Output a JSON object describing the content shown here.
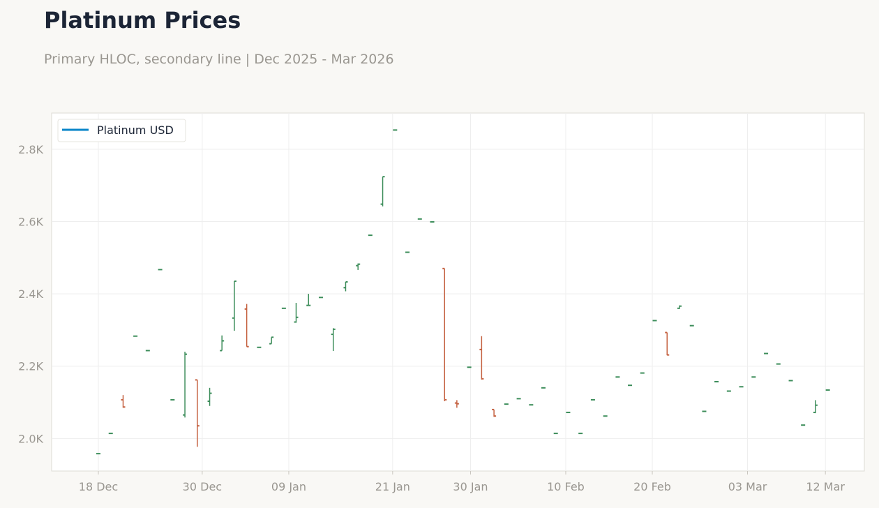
{
  "title": "Platinum Prices",
  "subtitle": "Primary HLOC, secondary line | Dec 2025 - Mar 2026",
  "colors": {
    "up": "#3c8d5a",
    "down": "#c4603f",
    "line": "#0a85c9",
    "grid": "#eeeeee",
    "frame": "#dddbd5"
  },
  "chart_data": {
    "type": "hloc",
    "title": "Platinum Prices",
    "legend": {
      "position": "top-left",
      "entries": [
        "Platinum USD"
      ]
    },
    "xlabel": "",
    "ylabel": "",
    "x_ticks": [
      {
        "day": 0,
        "label": "18 Dec"
      },
      {
        "day": 12,
        "label": "30 Dec"
      },
      {
        "day": 22,
        "label": "09 Jan"
      },
      {
        "day": 34,
        "label": "21 Jan"
      },
      {
        "day": 43,
        "label": "30 Jan"
      },
      {
        "day": 54,
        "label": "10 Feb"
      },
      {
        "day": 64,
        "label": "20 Feb"
      },
      {
        "day": 75,
        "label": "03 Mar"
      },
      {
        "day": 84,
        "label": "12 Mar"
      }
    ],
    "xlim": [
      -5.4,
      88.5
    ],
    "y_ticks": [
      2000,
      2200,
      2400,
      2600,
      2800
    ],
    "y_tick_labels": [
      "2.0K",
      "2.2K",
      "2.4K",
      "2.6K",
      "2.8K"
    ],
    "ylim": [
      1910,
      2900
    ],
    "grid": true,
    "series": [
      {
        "name": "Platinum USD",
        "points": [
          {
            "date": "18 Dec",
            "day": 0,
            "o": 1958,
            "h": 1958,
            "l": 1958,
            "c": 1958
          },
          {
            "date": "19 Dec",
            "day": 1.43,
            "o": 2014,
            "h": 2014,
            "l": 2014,
            "c": 2014
          },
          {
            "date": "21 Dec",
            "day": 2.86,
            "o": 2107,
            "h": 2120,
            "l": 2085,
            "c": 2087
          },
          {
            "date": "22 Dec",
            "day": 4.28,
            "o": 2283,
            "h": 2283,
            "l": 2283,
            "c": 2283
          },
          {
            "date": "23 Dec",
            "day": 5.71,
            "o": 2243,
            "h": 2243,
            "l": 2243,
            "c": 2243
          },
          {
            "date": "25 Dec",
            "day": 7.14,
            "o": 2467,
            "h": 2467,
            "l": 2467,
            "c": 2467
          },
          {
            "date": "26 Dec",
            "day": 8.57,
            "o": 2107,
            "h": 2107,
            "l": 2107,
            "c": 2107
          },
          {
            "date": "28 Dec",
            "day": 10,
            "o": 2065,
            "h": 2240,
            "l": 2058,
            "c": 2233
          },
          {
            "date": "29 Dec",
            "day": 11.43,
            "o": 2162,
            "h": 2162,
            "l": 1977,
            "c": 2035
          },
          {
            "date": "30 Dec",
            "day": 12.86,
            "o": 2103,
            "h": 2140,
            "l": 2090,
            "c": 2125
          },
          {
            "date": "01 Jan",
            "day": 14.28,
            "o": 2243,
            "h": 2285,
            "l": 2243,
            "c": 2270
          },
          {
            "date": "02 Jan",
            "day": 15.71,
            "o": 2333,
            "h": 2435,
            "l": 2298,
            "c": 2435
          },
          {
            "date": "03 Jan",
            "day": 17.14,
            "o": 2358,
            "h": 2372,
            "l": 2254,
            "c": 2254
          },
          {
            "date": "05 Jan",
            "day": 18.57,
            "o": 2252,
            "h": 2252,
            "l": 2252,
            "c": 2252
          },
          {
            "date": "06 Jan",
            "day": 20,
            "o": 2262,
            "h": 2280,
            "l": 2262,
            "c": 2280
          },
          {
            "date": "08 Jan",
            "day": 21.43,
            "o": 2360,
            "h": 2360,
            "l": 2360,
            "c": 2360
          },
          {
            "date": "09 Jan",
            "day": 22.85,
            "o": 2322,
            "h": 2375,
            "l": 2320,
            "c": 2335
          },
          {
            "date": "10 Jan",
            "day": 24.28,
            "o": 2368,
            "h": 2400,
            "l": 2368,
            "c": 2368
          },
          {
            "date": "12 Jan",
            "day": 25.71,
            "o": 2390,
            "h": 2390,
            "l": 2390,
            "c": 2390
          },
          {
            "date": "13 Jan",
            "day": 27.14,
            "o": 2288,
            "h": 2305,
            "l": 2242,
            "c": 2302
          },
          {
            "date": "14 Jan",
            "day": 28.57,
            "o": 2417,
            "h": 2433,
            "l": 2407,
            "c": 2433
          },
          {
            "date": "16 Jan",
            "day": 30,
            "o": 2478,
            "h": 2484,
            "l": 2466,
            "c": 2482
          },
          {
            "date": "17 Jan",
            "day": 31.42,
            "o": 2562,
            "h": 2562,
            "l": 2562,
            "c": 2562
          },
          {
            "date": "19 Jan",
            "day": 32.85,
            "o": 2648,
            "h": 2724,
            "l": 2642,
            "c": 2724
          },
          {
            "date": "20 Jan",
            "day": 34.28,
            "o": 2853,
            "h": 2853,
            "l": 2853,
            "c": 2853
          },
          {
            "date": "21 Jan",
            "day": 35.71,
            "o": 2515,
            "h": 2515,
            "l": 2515,
            "c": 2515
          },
          {
            "date": "23 Jan",
            "day": 37.14,
            "o": 2607,
            "h": 2607,
            "l": 2607,
            "c": 2607
          },
          {
            "date": "24 Jan",
            "day": 38.57,
            "o": 2599,
            "h": 2599,
            "l": 2599,
            "c": 2599
          },
          {
            "date": "25 Jan",
            "day": 40,
            "o": 2470,
            "h": 2470,
            "l": 2103,
            "c": 2107
          },
          {
            "date": "27 Jan",
            "day": 41.42,
            "o": 2098,
            "h": 2106,
            "l": 2085,
            "c": 2096
          },
          {
            "date": "28 Jan",
            "day": 42.85,
            "o": 2197,
            "h": 2197,
            "l": 2197,
            "c": 2197
          },
          {
            "date": "30 Jan",
            "day": 44.28,
            "o": 2246,
            "h": 2283,
            "l": 2163,
            "c": 2165
          },
          {
            "date": "31 Jan",
            "day": 45.71,
            "o": 2080,
            "h": 2080,
            "l": 2060,
            "c": 2062
          },
          {
            "date": "01 Feb",
            "day": 47.14,
            "o": 2095,
            "h": 2095,
            "l": 2095,
            "c": 2095
          },
          {
            "date": "03 Feb",
            "day": 48.57,
            "o": 2110,
            "h": 2110,
            "l": 2110,
            "c": 2110
          },
          {
            "date": "04 Feb",
            "day": 50,
            "o": 2093,
            "h": 2093,
            "l": 2093,
            "c": 2093
          },
          {
            "date": "06 Feb",
            "day": 51.42,
            "o": 2140,
            "h": 2140,
            "l": 2140,
            "c": 2140
          },
          {
            "date": "07 Feb",
            "day": 52.85,
            "o": 2014,
            "h": 2014,
            "l": 2014,
            "c": 2014
          },
          {
            "date": "08 Feb",
            "day": 54.28,
            "o": 2072,
            "h": 2072,
            "l": 2072,
            "c": 2072
          },
          {
            "date": "10 Feb",
            "day": 55.71,
            "o": 2014,
            "h": 2014,
            "l": 2014,
            "c": 2014
          },
          {
            "date": "11 Feb",
            "day": 57.14,
            "o": 2107,
            "h": 2107,
            "l": 2107,
            "c": 2107
          },
          {
            "date": "13 Feb",
            "day": 58.57,
            "o": 2062,
            "h": 2062,
            "l": 2062,
            "c": 2062
          },
          {
            "date": "14 Feb",
            "day": 60,
            "o": 2170,
            "h": 2170,
            "l": 2170,
            "c": 2170
          },
          {
            "date": "15 Feb",
            "day": 61.42,
            "o": 2147,
            "h": 2147,
            "l": 2147,
            "c": 2147
          },
          {
            "date": "17 Feb",
            "day": 62.85,
            "o": 2181,
            "h": 2181,
            "l": 2181,
            "c": 2181
          },
          {
            "date": "18 Feb",
            "day": 64.28,
            "o": 2326,
            "h": 2326,
            "l": 2326,
            "c": 2326
          },
          {
            "date": "20 Feb",
            "day": 65.71,
            "o": 2293,
            "h": 2293,
            "l": 2230,
            "c": 2231
          },
          {
            "date": "21 Feb",
            "day": 67.14,
            "o": 2360,
            "h": 2368,
            "l": 2358,
            "c": 2366
          },
          {
            "date": "22 Feb",
            "day": 68.57,
            "o": 2312,
            "h": 2312,
            "l": 2312,
            "c": 2312
          },
          {
            "date": "24 Feb",
            "day": 70,
            "o": 2075,
            "h": 2075,
            "l": 2075,
            "c": 2075
          },
          {
            "date": "25 Feb",
            "day": 71.42,
            "o": 2157,
            "h": 2157,
            "l": 2157,
            "c": 2157
          },
          {
            "date": "27 Feb",
            "day": 72.85,
            "o": 2131,
            "h": 2131,
            "l": 2131,
            "c": 2131
          },
          {
            "date": "28 Feb",
            "day": 74.28,
            "o": 2143,
            "h": 2143,
            "l": 2143,
            "c": 2143
          },
          {
            "date": "01 Mar",
            "day": 75.71,
            "o": 2170,
            "h": 2170,
            "l": 2170,
            "c": 2170
          },
          {
            "date": "03 Mar",
            "day": 77.14,
            "o": 2235,
            "h": 2235,
            "l": 2235,
            "c": 2235
          },
          {
            "date": "04 Mar",
            "day": 78.57,
            "o": 2206,
            "h": 2206,
            "l": 2206,
            "c": 2206
          },
          {
            "date": "05 Mar",
            "day": 80,
            "o": 2160,
            "h": 2160,
            "l": 2160,
            "c": 2160
          },
          {
            "date": "07 Mar",
            "day": 81.42,
            "o": 2037,
            "h": 2037,
            "l": 2037,
            "c": 2037
          },
          {
            "date": "08 Mar",
            "day": 82.85,
            "o": 2072,
            "h": 2106,
            "l": 2070,
            "c": 2092
          },
          {
            "date": "10 Mar",
            "day": 84.28,
            "o": 2134,
            "h": 2134,
            "l": 2134,
            "c": 2134
          }
        ]
      }
    ]
  }
}
